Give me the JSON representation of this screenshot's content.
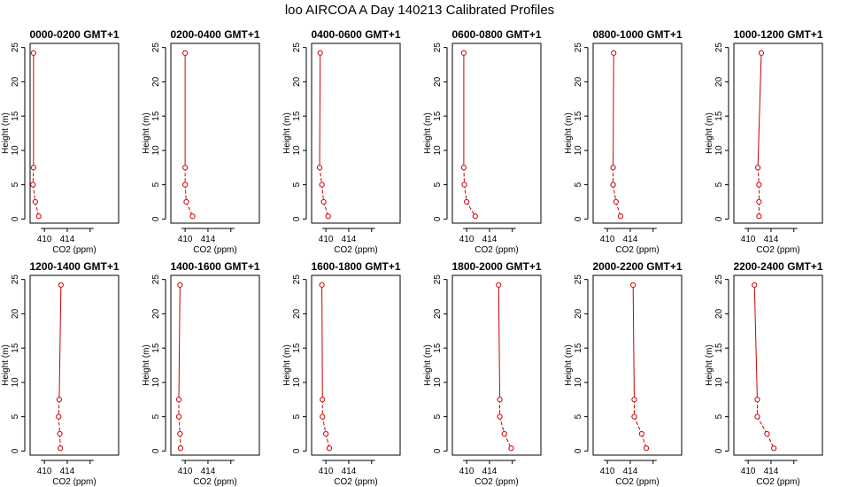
{
  "title": "loo AIRCOA A  Day 140213  Calibrated Profiles",
  "chart_data": {
    "type": "line",
    "xlabel": "CO2 (ppm)",
    "ylabel": "Height (m)",
    "xlim": [
      407.5,
      423
    ],
    "ylim": [
      -0.6,
      25.6
    ],
    "x_ticks": [
      410,
      414
    ],
    "y_ticks": [
      0,
      5,
      10,
      15,
      20,
      25
    ],
    "line_color": "#cc0000",
    "grid": false,
    "panels": [
      {
        "title": "0000-0200 GMT+1",
        "x": [
          408.1,
          408.1,
          408.0,
          408.4,
          409.0
        ],
        "y": [
          24.2,
          7.5,
          5.0,
          2.5,
          0.4
        ]
      },
      {
        "title": "0200-0400 GMT+1",
        "x": [
          410.0,
          410.0,
          410.0,
          410.2,
          411.3
        ],
        "y": [
          24.2,
          7.5,
          5.0,
          2.5,
          0.4
        ]
      },
      {
        "title": "0400-0600 GMT+1",
        "x": [
          409.0,
          408.9,
          409.3,
          409.6,
          410.4
        ],
        "y": [
          24.2,
          7.5,
          5.0,
          2.5,
          0.4
        ]
      },
      {
        "title": "0600-0800 GMT+1",
        "x": [
          409.5,
          409.5,
          409.6,
          410.0,
          411.5
        ],
        "y": [
          24.2,
          7.5,
          5.0,
          2.5,
          0.4
        ]
      },
      {
        "title": "0800-1000 GMT+1",
        "x": [
          411.1,
          411.0,
          411.0,
          411.5,
          412.3
        ],
        "y": [
          24.2,
          7.5,
          5.0,
          2.5,
          0.4
        ]
      },
      {
        "title": "1000-1200 GMT+1",
        "x": [
          412.3,
          411.7,
          411.9,
          411.9,
          411.9
        ],
        "y": [
          24.2,
          7.5,
          5.0,
          2.5,
          0.4
        ]
      },
      {
        "title": "1200-1400 GMT+1",
        "x": [
          412.9,
          412.6,
          412.5,
          412.7,
          412.8
        ],
        "y": [
          24.2,
          7.5,
          5.0,
          2.5,
          0.4
        ]
      },
      {
        "title": "1400-1600 GMT+1",
        "x": [
          409.1,
          408.9,
          408.9,
          409.1,
          409.2
        ],
        "y": [
          24.2,
          7.5,
          5.0,
          2.5,
          0.4
        ]
      },
      {
        "title": "1600-1800 GMT+1",
        "x": [
          409.3,
          409.4,
          409.4,
          410.0,
          410.6
        ],
        "y": [
          24.2,
          7.5,
          5.0,
          2.5,
          0.4
        ]
      },
      {
        "title": "1800-2000 GMT+1",
        "x": [
          415.6,
          415.8,
          415.8,
          416.6,
          417.8
        ],
        "y": [
          24.2,
          7.5,
          5.0,
          2.5,
          0.4
        ]
      },
      {
        "title": "2000-2200 GMT+1",
        "x": [
          414.5,
          414.7,
          414.7,
          416.0,
          416.8
        ],
        "y": [
          24.2,
          7.5,
          5.0,
          2.5,
          0.4
        ]
      },
      {
        "title": "2200-2400 GMT+1",
        "x": [
          411.1,
          411.6,
          411.6,
          413.3,
          414.5
        ],
        "y": [
          24.2,
          7.5,
          5.0,
          2.5,
          0.4
        ]
      }
    ]
  }
}
